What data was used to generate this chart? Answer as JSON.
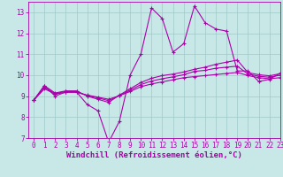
{
  "background_color": "#c8e8e8",
  "grid_color": "#a0c8c8",
  "line_color": "#aa00aa",
  "xlim": [
    -0.5,
    23
  ],
  "ylim": [
    7,
    13.5
  ],
  "xlabel": "Windchill (Refroidissement éolien,°C)",
  "xticks": [
    0,
    1,
    2,
    3,
    4,
    5,
    6,
    7,
    8,
    9,
    10,
    11,
    12,
    13,
    14,
    15,
    16,
    17,
    18,
    19,
    20,
    21,
    22,
    23
  ],
  "yticks": [
    7,
    8,
    9,
    10,
    11,
    12,
    13
  ],
  "tick_fontsize": 5.5,
  "xlabel_fontsize": 6.5,
  "line1_x": [
    0,
    1,
    2,
    3,
    4,
    5,
    6,
    7,
    8,
    9,
    10,
    11,
    12,
    13,
    14,
    15,
    16,
    17,
    18,
    19,
    20,
    21,
    22,
    23
  ],
  "line1_y": [
    8.8,
    9.5,
    9.0,
    9.2,
    9.2,
    8.6,
    8.3,
    6.8,
    7.8,
    10.0,
    11.0,
    13.2,
    12.7,
    11.1,
    11.5,
    13.3,
    12.5,
    12.2,
    12.1,
    10.2,
    10.2,
    9.7,
    9.8,
    10.1
  ],
  "line2_x": [
    0,
    1,
    2,
    3,
    4,
    5,
    6,
    7,
    8,
    9,
    10,
    11,
    12,
    13,
    14,
    15,
    16,
    17,
    18,
    19,
    20,
    21,
    22,
    23
  ],
  "line2_y": [
    8.8,
    9.5,
    9.15,
    9.25,
    9.25,
    9.0,
    8.85,
    8.7,
    9.05,
    9.35,
    9.65,
    9.85,
    9.98,
    10.05,
    10.15,
    10.28,
    10.38,
    10.52,
    10.62,
    10.72,
    10.12,
    10.02,
    9.97,
    10.07
  ],
  "line3_x": [
    0,
    1,
    2,
    3,
    4,
    5,
    6,
    7,
    8,
    9,
    10,
    11,
    12,
    13,
    14,
    15,
    16,
    17,
    18,
    19,
    20,
    21,
    22,
    23
  ],
  "line3_y": [
    8.8,
    9.35,
    9.1,
    9.18,
    9.18,
    9.05,
    8.95,
    8.85,
    9.02,
    9.22,
    9.45,
    9.58,
    9.68,
    9.78,
    9.88,
    9.93,
    9.98,
    10.03,
    10.08,
    10.13,
    9.98,
    9.88,
    9.83,
    9.88
  ],
  "line4_x": [
    0,
    1,
    2,
    3,
    4,
    5,
    6,
    7,
    8,
    9,
    10,
    11,
    12,
    13,
    14,
    15,
    16,
    17,
    18,
    19,
    20,
    21,
    22,
    23
  ],
  "line4_y": [
    8.8,
    9.42,
    9.12,
    9.22,
    9.22,
    9.02,
    8.92,
    8.78,
    9.03,
    9.28,
    9.55,
    9.72,
    9.83,
    9.92,
    10.02,
    10.18,
    10.23,
    10.33,
    10.38,
    10.43,
    10.05,
    9.95,
    9.9,
    10.0
  ]
}
